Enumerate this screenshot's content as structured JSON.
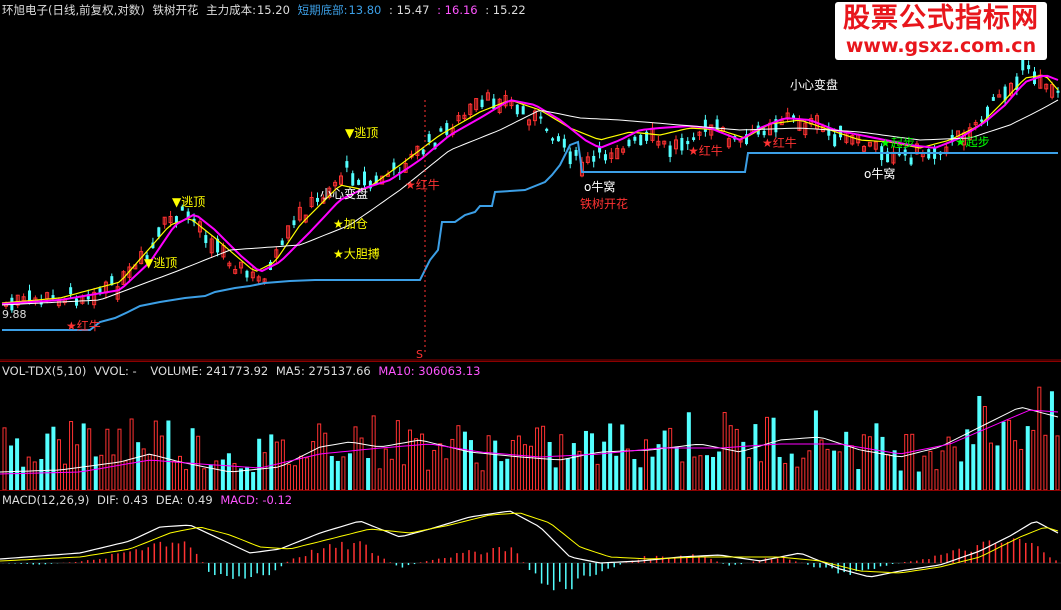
{
  "header": {
    "stock_name": "环旭电子",
    "period_info": "(日线,前复权,对数)",
    "indicator_name": "铁树开花",
    "cost_label": "主力成本:",
    "cost_value": "15.20",
    "bottom_label": "短期底部:",
    "bottom_value": "13.80",
    "v3": ": 15.47",
    "v4": ": 16.16",
    "v5": ": 15.22"
  },
  "watermark": {
    "title": "股票公式指标网",
    "url": "www.gsxz.com.cn"
  },
  "vol_header": {
    "name": "VOL-TDX(5,10)",
    "vvol": "VVOL: -",
    "volume": "VOLUME: 241773.92",
    "ma5": "MA5: 275137.66",
    "ma10": "MA10: 306063.13"
  },
  "macd_header": {
    "name": "MACD(12,26,9)",
    "dif": "DIF: 0.43",
    "dea": "DEA: 0.49",
    "macd": "MACD: -0.12"
  },
  "main_markers": {
    "s_marker": "S",
    "low_price": "9.88"
  },
  "colors": {
    "up": "#ff3232",
    "down": "#54ffff",
    "ma_white": "#ffffff",
    "ma_yellow": "#ffff00",
    "ma_magenta": "#ff00ff",
    "support_line": "#3c9fe6",
    "signal_red": "#ff3232",
    "signal_yellow": "#ffff00",
    "signal_green": "#00ff00"
  },
  "chart_data": [
    {
      "type": "line",
      "panel": "price",
      "series": [
        {
          "name": "主力成本",
          "values": [
            15.2
          ]
        },
        {
          "name": "短期底部",
          "values": [
            13.8
          ]
        }
      ],
      "signals": [
        {
          "label": "逃顶",
          "style": "down-yellow"
        },
        {
          "label": "逃顶",
          "style": "down-yellow"
        },
        {
          "label": "逃顶",
          "style": "down-yellow"
        },
        {
          "label": "小心变盘",
          "style": "white"
        },
        {
          "label": "小心变盘",
          "style": "white"
        },
        {
          "label": "加仓",
          "style": "star-yellow"
        },
        {
          "label": "大胆搏",
          "style": "star-yellow"
        },
        {
          "label": "红牛",
          "style": "star-red"
        },
        {
          "label": "红牛",
          "style": "star-red"
        },
        {
          "label": "红牛",
          "style": "star-red"
        },
        {
          "label": "红牛",
          "style": "star-red"
        },
        {
          "label": "牛窝",
          "style": "circle-white"
        },
        {
          "label": "牛窝",
          "style": "circle-white"
        },
        {
          "label": "铁树开花",
          "style": "red-text"
        },
        {
          "label": "起步",
          "style": "star-green"
        },
        {
          "label": "起步",
          "style": "star-green"
        }
      ]
    },
    {
      "type": "bar",
      "panel": "volume",
      "series": [
        {
          "name": "VOLUME",
          "values": [
            241773.92
          ]
        },
        {
          "name": "MA5",
          "values": [
            275137.66
          ]
        },
        {
          "name": "MA10",
          "values": [
            306063.13
          ]
        }
      ]
    },
    {
      "type": "bar",
      "panel": "macd",
      "series": [
        {
          "name": "DIF",
          "values": [
            0.43
          ]
        },
        {
          "name": "DEA",
          "values": [
            0.49
          ]
        },
        {
          "name": "MACD",
          "values": [
            -0.12
          ]
        }
      ]
    }
  ]
}
